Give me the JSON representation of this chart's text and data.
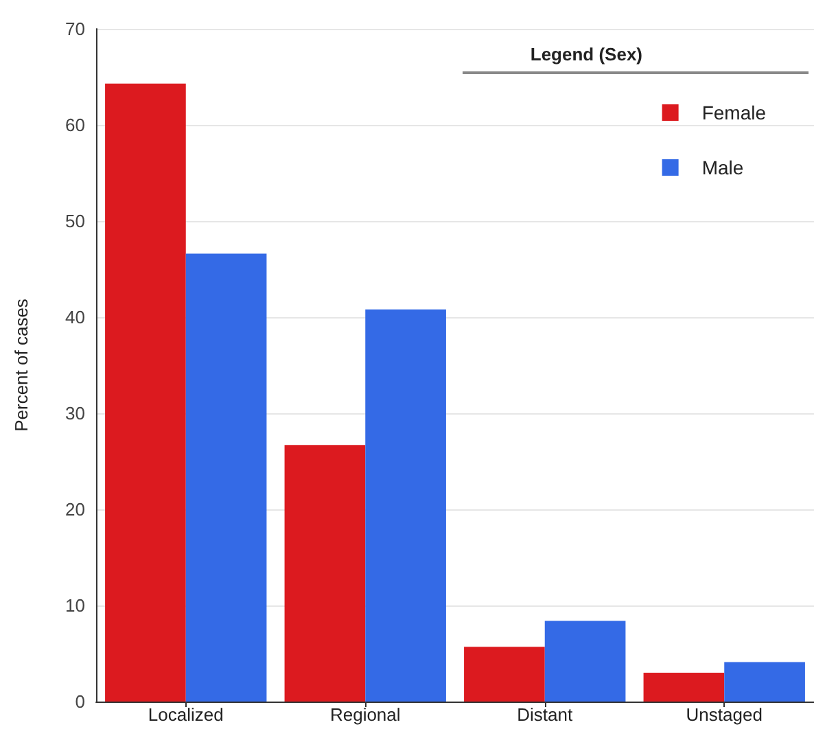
{
  "chart_data": {
    "type": "bar",
    "ylabel": "Percent of cases",
    "legend_title": "Legend (Sex)",
    "categories": [
      "Localized",
      "Regional",
      "Distant",
      "Unstaged"
    ],
    "series": [
      {
        "name": "Female",
        "color": "#dc1a1f",
        "values": [
          64.3,
          26.7,
          5.7,
          3.0
        ]
      },
      {
        "name": "Male",
        "color": "#346ae6",
        "values": [
          46.6,
          40.8,
          8.4,
          4.1
        ]
      }
    ],
    "ylim": [
      0,
      70
    ],
    "yticks": [
      0,
      10,
      20,
      30,
      40,
      50,
      60,
      70
    ],
    "grid": "y",
    "legend": "top right"
  }
}
